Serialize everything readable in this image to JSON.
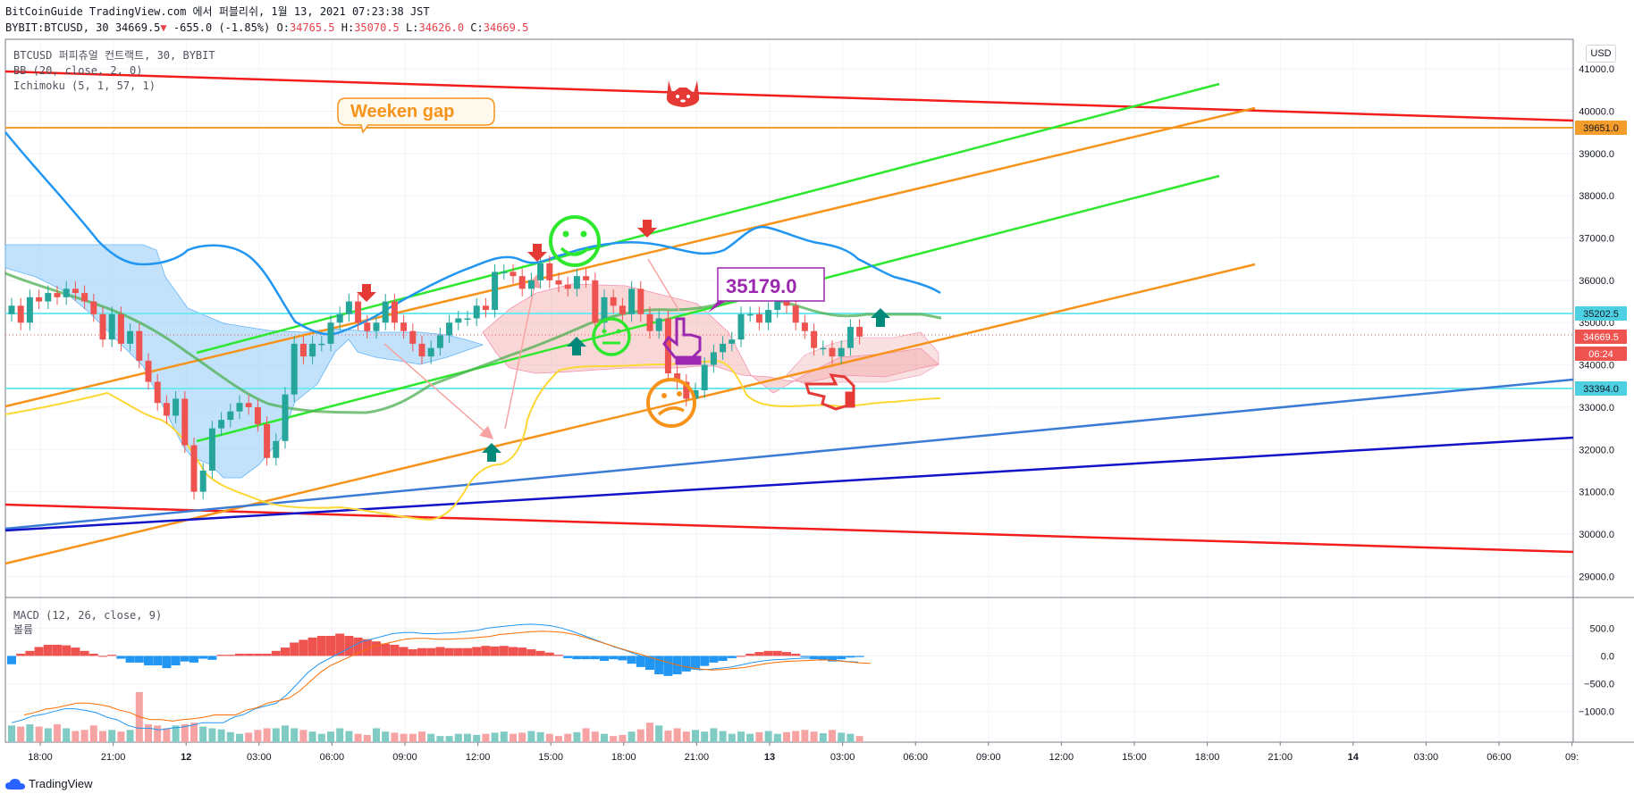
{
  "header": {
    "line1": "BitCoinGuide TradingView.com 에서 퍼블리쉬, 1월 13, 2021 07:23:38 JST",
    "symbol": "BYBIT:BTCUSD, 30",
    "last": "34669.5",
    "change": "-655.0 (-1.85%)",
    "o_label": "O:",
    "o": "34765.5",
    "h_label": "H:",
    "h": "35070.5",
    "l_label": "L:",
    "l": "34626.0",
    "c_label": "C:",
    "c": "34669.5"
  },
  "legend": {
    "title": "BTCUSD 퍼피츄얼 컨트랙트, 30, BYBIT",
    "bb": "BB (20, close, 2, 0)",
    "ichimoku": "Ichimoku (5, 1, 57, 1)",
    "macd": "MACD (12, 26, close, 9)",
    "volume": "볼륨"
  },
  "currency_badge": "USD",
  "footer": {
    "brand": "TradingView"
  },
  "colors": {
    "up": "#26a69a",
    "down": "#ef5350",
    "bg": "#ffffff"
  },
  "chart_data": [
    {
      "type": "candlestick",
      "title": "BTCUSD 퍼피츄얼 컨트랙트, 30, BYBIT",
      "ylim": [
        28500,
        41700
      ],
      "y_ticks": [
        29000,
        30000,
        31000,
        32000,
        33000,
        34000,
        35000,
        36000,
        37000,
        38000,
        39000,
        40000,
        41000
      ],
      "x_ticks": [
        "18:00",
        "21:00",
        "12",
        "03:00",
        "06:00",
        "09:00",
        "12:00",
        "15:00",
        "18:00",
        "21:00",
        "13",
        "03:00",
        "06:00",
        "09:00",
        "12:00",
        "15:00",
        "18:00",
        "21:00",
        "14",
        "03:00",
        "06:00",
        "09:"
      ],
      "grid": true,
      "close": [
        35400,
        35000,
        35600,
        35500,
        35700,
        35600,
        35800,
        35700,
        35500,
        35200,
        34600,
        35200,
        34500,
        34800,
        34100,
        33600,
        33100,
        32800,
        33200,
        32100,
        31000,
        31500,
        32500,
        32700,
        32900,
        33100,
        33000,
        32600,
        31800,
        32200,
        33300,
        34500,
        34200,
        34500,
        34500,
        35000,
        35200,
        35500,
        35000,
        34800,
        35000,
        35500,
        35000,
        34800,
        34500,
        34200,
        34400,
        34700,
        35000,
        35100,
        35100,
        35400,
        35300,
        36200,
        36200,
        36100,
        35800,
        36000,
        36400,
        36000,
        35900,
        35800,
        36100,
        36000,
        35000,
        35600,
        35400,
        35200,
        35800,
        35200,
        34800,
        35100,
        33800,
        33600,
        33200,
        33400,
        34000,
        34300,
        34500,
        34600,
        35200,
        35200,
        35000,
        35300,
        35600,
        35400,
        35000,
        34800,
        34400,
        34400,
        34200,
        34400,
        34900,
        34670
      ],
      "price_labels": [
        {
          "value": "39651.0",
          "color": "#f59d2a"
        },
        {
          "value": "35202.5",
          "color": "#4dd0e1"
        },
        {
          "value": "34669.5",
          "color": "#ef5350"
        },
        {
          "value": "06:24",
          "color": "#ef5350"
        },
        {
          "value": "33394.0",
          "color": "#4dd0e1"
        }
      ],
      "horizontal_lines": [
        {
          "value": 39651,
          "color": "#f59d2a"
        },
        {
          "value": 35202.5,
          "color": "#6fe8f0"
        },
        {
          "value": 33394,
          "color": "#6fe8f0"
        }
      ],
      "annotations": [
        {
          "text": "Weeken gap",
          "color": "#f59d2a"
        },
        {
          "text": "35179.0",
          "color": "#9c27b0"
        }
      ]
    },
    {
      "type": "bar",
      "title": "MACD (12, 26, close, 9)",
      "ylim": [
        -1550,
        1050
      ],
      "y_ticks": [
        500,
        0,
        -500,
        -1000
      ],
      "y_tick_labels": [
        "500.0",
        "0.0",
        "−500.0",
        "−1000.0"
      ],
      "histogram": [
        -150,
        40,
        90,
        160,
        200,
        200,
        190,
        150,
        90,
        40,
        0,
        20,
        -50,
        -120,
        -120,
        -170,
        -170,
        -220,
        -170,
        -100,
        -120,
        -50,
        -70,
        20,
        20,
        40,
        40,
        40,
        40,
        90,
        150,
        240,
        290,
        330,
        360,
        360,
        400,
        360,
        330,
        300,
        260,
        220,
        200,
        160,
        120,
        140,
        140,
        160,
        140,
        140,
        140,
        160,
        180,
        170,
        180,
        160,
        150,
        120,
        90,
        60,
        20,
        -40,
        -60,
        -60,
        -60,
        -90,
        -60,
        -80,
        -140,
        -200,
        -250,
        -330,
        -360,
        -330,
        -280,
        -230,
        -180,
        -120,
        -90,
        -40,
        0,
        40,
        70,
        90,
        90,
        70,
        40,
        -20,
        -60,
        -80,
        -100,
        -60,
        -30,
        -20
      ],
      "volume": [
        -1250,
        -1270,
        -1230,
        -1270,
        -1300,
        -1230,
        -1300,
        -1350,
        -1330,
        -1250,
        -1350,
        -1330,
        -1360,
        -1330,
        -650,
        -1230,
        -1250,
        -1300,
        -1250,
        -1230,
        -1200,
        -1270,
        -1300,
        -1320,
        -1370,
        -1400,
        -1380,
        -1330,
        -1300,
        -1300,
        -1250,
        -1300,
        -1330,
        -1360,
        -1400,
        -1360,
        -1300,
        -1350,
        -1400,
        -1420,
        -1300,
        -1360,
        -1380,
        -1400,
        -1400,
        -1360,
        -1400,
        -1440,
        -1440,
        -1400,
        -1400,
        -1420,
        -1400,
        -1380,
        -1360,
        -1400,
        -1380,
        -1350,
        -1370,
        -1400,
        -1440,
        -1400,
        -1370,
        -1300,
        -1360,
        -1400,
        -1440,
        -1420,
        -1360,
        -1320,
        -1200,
        -1250,
        -1340,
        -1300,
        -1360,
        -1330,
        -1360,
        -1300,
        -1350,
        -1400,
        -1360,
        -1400,
        -1370,
        -1350,
        -1400,
        -1370,
        -1350,
        -1330,
        -1360,
        -1390,
        -1330,
        -1380,
        -1400,
        -1440
      ],
      "macd_line": [
        -1200,
        -1150,
        -1080,
        -1050,
        -1000,
        -950,
        -950,
        -980,
        -1020,
        -1100,
        -1150,
        -1250,
        -1300,
        -1300,
        -1330,
        -1300,
        -1280,
        -1250,
        -1200,
        -1200,
        -1200,
        -1100,
        -1050,
        -950,
        -900,
        -850,
        -700,
        -500,
        -300,
        -150,
        -50,
        50,
        150,
        250,
        300,
        350,
        400,
        420,
        420,
        400,
        400,
        410,
        420,
        440,
        460,
        500,
        520,
        540,
        560,
        570,
        560,
        540,
        500,
        440,
        370,
        300,
        230,
        160,
        100,
        30,
        -40,
        -100,
        -160,
        -200,
        -230,
        -250,
        -240,
        -220,
        -200,
        -160,
        -120,
        -90,
        -70,
        -60,
        -50,
        -40,
        -40,
        -60,
        -80,
        -100,
        -110
      ]
    }
  ]
}
